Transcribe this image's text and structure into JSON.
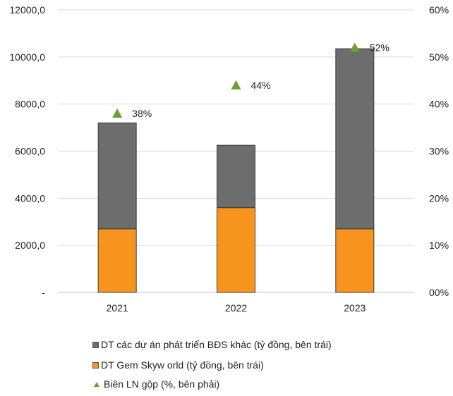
{
  "chart_data": {
    "type": "bar",
    "categories": [
      "2021",
      "2022",
      "2023"
    ],
    "series": [
      {
        "name": "DT Gem Skyw orld (tỷ đồng, bên trái)",
        "values": [
          2700,
          3600,
          2700
        ],
        "color": "#f7941d",
        "axis": "left"
      },
      {
        "name": "DT các dự án phát triển BĐS khác (tỷ đồng, bên trái)",
        "values": [
          4500,
          2650,
          7650
        ],
        "color": "#6d6d6d",
        "axis": "left"
      },
      {
        "name": "Biên LN gộp (%, bên phải)",
        "values": [
          38,
          44,
          52
        ],
        "labels": [
          "38%",
          "44%",
          "52%"
        ],
        "color": "#6aa031",
        "axis": "right",
        "marker": "triangle"
      }
    ],
    "stacked": true,
    "ylim": [
      0,
      12000
    ],
    "y2lim": [
      0,
      60
    ],
    "yticks": [
      "-",
      "2000,0",
      "4000,0",
      "6000,0",
      "8000,0",
      "10000,0",
      "12000,0"
    ],
    "y2ticks": [
      "00%",
      "10%",
      "20%",
      "30%",
      "40%",
      "50%",
      "60%"
    ],
    "grid": true,
    "legend_position": "bottom"
  }
}
